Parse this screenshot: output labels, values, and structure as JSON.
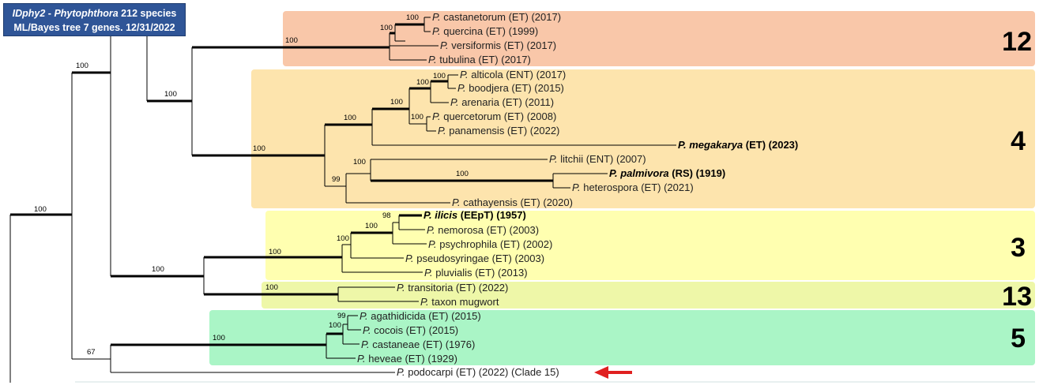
{
  "title": {
    "line1_italic": "IDphy2",
    "line1_sep": " - ",
    "line1_genus": "Phytophthora",
    "line1_rest": " 212 species",
    "line2": "ML/Bayes tree 7 genes. 12/31/2022"
  },
  "clades": [
    {
      "number": "12",
      "color": "#f9c7a9"
    },
    {
      "number": "4",
      "color": "#fde4ad"
    },
    {
      "number": "3",
      "color": "#ffffb0"
    },
    {
      "number": "13",
      "color": "#eef7a8"
    },
    {
      "number": "5",
      "color": "#aaf5c6"
    }
  ],
  "taxa": [
    {
      "genus": "P.",
      "rest": " castanetorum (ET) (2017)",
      "bold": false
    },
    {
      "genus": "P.",
      "rest": " quercina (ET) (1999)",
      "bold": false
    },
    {
      "genus": "P.",
      "rest": " versiformis (ET) (2017)",
      "bold": false
    },
    {
      "genus": "P.",
      "rest": " tubulina (ET) (2017)",
      "bold": false
    },
    {
      "genus": "P.",
      "rest": " alticola (ENT) (2017)",
      "bold": false
    },
    {
      "genus": "P.",
      "rest": " boodjera (ET) (2015)",
      "bold": false
    },
    {
      "genus": "P.",
      "rest": " arenaria (ET) (2011)",
      "bold": false
    },
    {
      "genus": "P.",
      "rest": " quercetorum (ET) (2008)",
      "bold": false
    },
    {
      "genus": "P.",
      "rest": " panamensis (ET) (2022)",
      "bold": false
    },
    {
      "genus": "P. megakarya",
      "rest": " (ET) (2023)",
      "bold": true
    },
    {
      "genus": "P.",
      "rest": " litchii (ENT) (2007)",
      "bold": false
    },
    {
      "genus": "P. palmivora",
      "rest": " (RS) (1919)",
      "bold": true
    },
    {
      "genus": "P.",
      "rest": " heterospora (ET) (2021)",
      "bold": false
    },
    {
      "genus": "P.",
      "rest": " cathayensis (ET) (2020)",
      "bold": false
    },
    {
      "genus": "P. ilicis",
      "rest": " (EEpT) (1957)",
      "bold": true
    },
    {
      "genus": "P.",
      "rest": " nemorosa (ET) (2003)",
      "bold": false
    },
    {
      "genus": "P.",
      "rest": " psychrophila (ET) (2002)",
      "bold": false
    },
    {
      "genus": "P.",
      "rest": " pseudosyringae (ET) (2003)",
      "bold": false
    },
    {
      "genus": "P.",
      "rest": " pluvialis (ET) (2013)",
      "bold": false
    },
    {
      "genus": "P.",
      "rest": " transitoria (ET) (2022)",
      "bold": false
    },
    {
      "genus": "P.",
      "rest": " taxon mugwort",
      "bold": false
    },
    {
      "genus": "P.",
      "rest": " agathidicida (ET) (2015)",
      "bold": false
    },
    {
      "genus": "P.",
      "rest": " cocois (ET) (2015)",
      "bold": false
    },
    {
      "genus": "P.",
      "rest": " castaneae (ET) (1976)",
      "bold": false
    },
    {
      "genus": "P.",
      "rest": " heveae (ET) (1929)",
      "bold": false
    },
    {
      "genus": "P.",
      "rest": " podocarpi (ET) (2022) (Clade 15)",
      "bold": false
    }
  ],
  "support_values": [
    "100",
    "100",
    "100",
    "100",
    "100",
    "100",
    "100",
    "100",
    "100",
    "100",
    "100",
    "99",
    "100",
    "100",
    "100",
    "98",
    "100",
    "100",
    "100",
    "100",
    "100",
    "99",
    "100",
    "100",
    "67"
  ],
  "arrow": {
    "color": "#e02020",
    "target": "P. podocarpi"
  }
}
